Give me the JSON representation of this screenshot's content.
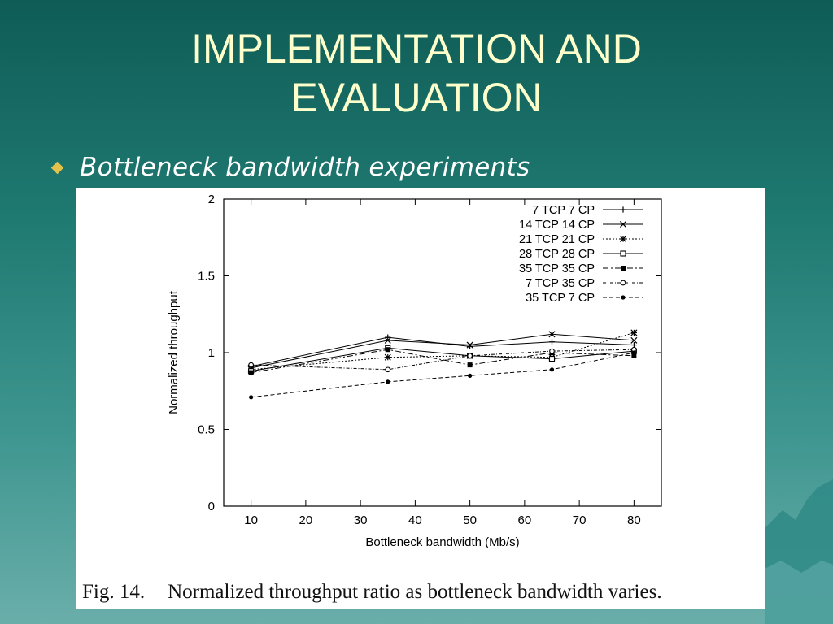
{
  "slide": {
    "title_line1": "IMPLEMENTATION AND",
    "title_line2": "EVALUATION",
    "bullet": "Bottleneck bandwidth experiments",
    "colors": {
      "title": "#ffffcc",
      "bullet_icon": "#e2c24a",
      "background_top": "#0f5c56",
      "background_bottom": "#6aaeaa"
    }
  },
  "figure": {
    "number": "Fig. 14.",
    "caption": "Normalized throughput ratio as bottleneck bandwidth varies."
  },
  "chart_data": {
    "type": "line",
    "xlabel": "Bottleneck bandwidth (Mb/s)",
    "ylabel": "Normalized throughput",
    "xlim": [
      5,
      85
    ],
    "ylim": [
      0,
      2
    ],
    "x_ticks": [
      10,
      20,
      30,
      40,
      50,
      60,
      70,
      80
    ],
    "y_ticks": [
      0,
      0.5,
      1,
      1.5,
      2
    ],
    "y_tick_labels": [
      "0",
      "0.5",
      "1",
      "1.5",
      "2"
    ],
    "grid": false,
    "legend_position": "top-right",
    "x": [
      10,
      35,
      50,
      65,
      80
    ],
    "series": [
      {
        "name": "7 TCP 7 CP",
        "marker": "plus",
        "dash": "solid",
        "values": [
          0.91,
          1.1,
          1.04,
          1.07,
          1.05
        ]
      },
      {
        "name": "14 TCP 14 CP",
        "marker": "cross",
        "dash": "solid",
        "values": [
          0.9,
          1.08,
          1.05,
          1.12,
          1.08
        ]
      },
      {
        "name": "21 TCP 21 CP",
        "marker": "star",
        "dash": "dotted",
        "values": [
          0.89,
          0.97,
          0.98,
          0.97,
          1.13
        ]
      },
      {
        "name": "28 TCP 28 CP",
        "marker": "open-square",
        "dash": "solid",
        "values": [
          0.88,
          1.03,
          0.98,
          0.96,
          1.01
        ]
      },
      {
        "name": "35 TCP 35 CP",
        "marker": "filled-square",
        "dash": "dashdot",
        "values": [
          0.87,
          1.02,
          0.92,
          1.0,
          0.98
        ]
      },
      {
        "name": "7 TCP 35 CP",
        "marker": "open-circle",
        "dash": "dashdot2",
        "values": [
          0.92,
          0.89,
          0.98,
          1.01,
          1.02
        ]
      },
      {
        "name": "35 TCP 7 CP",
        "marker": "filled-circle",
        "dash": "dashed",
        "values": [
          0.71,
          0.81,
          0.85,
          0.89,
          1.0
        ]
      }
    ]
  }
}
